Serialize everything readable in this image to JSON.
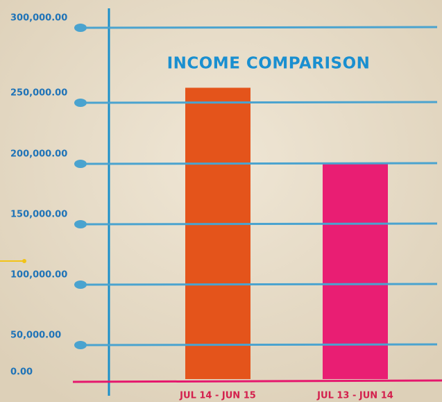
{
  "chart_data": {
    "type": "bar",
    "title": "INCOME COMPARISON",
    "categories": [
      "JUL  14 - JUN 15",
      "JUL  13 - JUN 14"
    ],
    "series": [
      {
        "name": null,
        "values": [
          260000,
          200000
        ]
      }
    ],
    "colors": [
      "#e4541b",
      "#e91e73"
    ],
    "ylim": [
      0,
      300000
    ],
    "yticks": [
      {
        "value": 0,
        "label": "0.00"
      },
      {
        "value": 50000,
        "label": "50,000.00"
      },
      {
        "value": 100000,
        "label": "100,000.00"
      },
      {
        "value": 150000,
        "label": "150,000.00"
      },
      {
        "value": 200000,
        "label": "200,000.00"
      },
      {
        "value": 250000,
        "label": "250,000.00"
      },
      {
        "value": 300000,
        "label": "300,000.00"
      }
    ],
    "grid": true
  }
}
